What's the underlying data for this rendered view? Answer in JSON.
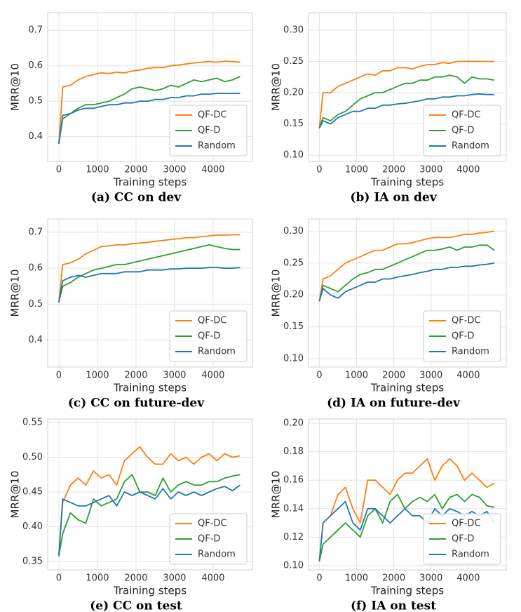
{
  "chart_data": [
    {
      "type": "line",
      "title": "(a) CC on dev",
      "x_label": "Training steps",
      "y_label": "MRR@10",
      "x": [
        0,
        100,
        300,
        500,
        700,
        900,
        1100,
        1300,
        1500,
        1700,
        1900,
        2100,
        2300,
        2500,
        2700,
        2900,
        3100,
        3300,
        3500,
        3700,
        3900,
        4100,
        4300,
        4500,
        4700
      ],
      "series": [
        {
          "name": "QF-DC",
          "color": "#ff7f0e",
          "values": [
            0.38,
            0.54,
            0.545,
            0.56,
            0.57,
            0.575,
            0.58,
            0.578,
            0.582,
            0.58,
            0.585,
            0.588,
            0.593,
            0.595,
            0.595,
            0.6,
            0.602,
            0.605,
            0.608,
            0.61,
            0.612,
            0.61,
            0.613,
            0.612,
            0.61
          ]
        },
        {
          "name": "QF-D",
          "color": "#2ca02c",
          "values": [
            0.38,
            0.45,
            0.465,
            0.48,
            0.49,
            0.49,
            0.495,
            0.5,
            0.51,
            0.52,
            0.535,
            0.54,
            0.535,
            0.53,
            0.535,
            0.545,
            0.54,
            0.55,
            0.56,
            0.555,
            0.56,
            0.565,
            0.555,
            0.56,
            0.57
          ]
        },
        {
          "name": "Random",
          "color": "#1f77b4",
          "values": [
            0.38,
            0.46,
            0.465,
            0.475,
            0.48,
            0.48,
            0.485,
            0.49,
            0.49,
            0.495,
            0.495,
            0.5,
            0.5,
            0.505,
            0.505,
            0.51,
            0.51,
            0.515,
            0.515,
            0.52,
            0.52,
            0.522,
            0.522,
            0.522,
            0.522
          ]
        }
      ],
      "xlim": [
        -290,
        5020
      ],
      "xticks": [
        0,
        1000,
        2000,
        3000,
        4000
      ],
      "ylim": [
        0.33,
        0.75
      ],
      "yticks": [
        0.4,
        0.5,
        0.6,
        0.7
      ],
      "grid": true,
      "legend": "lower right"
    },
    {
      "type": "line",
      "title": "(b) IA on dev",
      "x_label": "Training steps",
      "y_label": "MRR@10",
      "x": [
        0,
        100,
        300,
        500,
        700,
        900,
        1100,
        1300,
        1500,
        1700,
        1900,
        2100,
        2300,
        2500,
        2700,
        2900,
        3100,
        3300,
        3500,
        3700,
        3900,
        4100,
        4300,
        4500,
        4700
      ],
      "series": [
        {
          "name": "QF-DC",
          "color": "#ff7f0e",
          "values": [
            0.143,
            0.2,
            0.2,
            0.21,
            0.215,
            0.22,
            0.225,
            0.23,
            0.228,
            0.235,
            0.235,
            0.24,
            0.24,
            0.238,
            0.242,
            0.245,
            0.245,
            0.248,
            0.247,
            0.25,
            0.25,
            0.25,
            0.25,
            0.25,
            0.25
          ]
        },
        {
          "name": "QF-D",
          "color": "#2ca02c",
          "values": [
            0.143,
            0.16,
            0.155,
            0.165,
            0.17,
            0.18,
            0.19,
            0.195,
            0.2,
            0.2,
            0.205,
            0.21,
            0.215,
            0.215,
            0.22,
            0.22,
            0.225,
            0.225,
            0.228,
            0.225,
            0.215,
            0.225,
            0.222,
            0.222,
            0.22
          ]
        },
        {
          "name": "Random",
          "color": "#1f77b4",
          "values": [
            0.143,
            0.155,
            0.15,
            0.16,
            0.165,
            0.17,
            0.17,
            0.175,
            0.175,
            0.18,
            0.18,
            0.182,
            0.183,
            0.185,
            0.187,
            0.19,
            0.19,
            0.193,
            0.193,
            0.195,
            0.195,
            0.197,
            0.198,
            0.197,
            0.197
          ]
        }
      ],
      "xlim": [
        -290,
        5020
      ],
      "xticks": [
        0,
        1000,
        2000,
        3000,
        4000
      ],
      "ylim": [
        0.09,
        0.328
      ],
      "yticks": [
        {
          "value": 0.1,
          "label": "0.10"
        },
        0.15,
        {
          "value": 0.2,
          "label": "0.20"
        },
        0.25,
        {
          "value": 0.3,
          "label": "0.30"
        }
      ],
      "grid": true,
      "legend": "lower right"
    },
    {
      "type": "line",
      "title": "(c) CC on future-dev",
      "x_label": "Training steps",
      "y_label": "MRR@10",
      "x": [
        0,
        100,
        300,
        500,
        700,
        900,
        1100,
        1300,
        1500,
        1700,
        1900,
        2100,
        2300,
        2500,
        2700,
        2900,
        3100,
        3300,
        3500,
        3700,
        3900,
        4100,
        4300,
        4500,
        4700
      ],
      "series": [
        {
          "name": "QF-DC",
          "color": "#ff7f0e",
          "values": [
            0.505,
            0.61,
            0.615,
            0.625,
            0.64,
            0.65,
            0.66,
            0.662,
            0.665,
            0.665,
            0.668,
            0.67,
            0.672,
            0.675,
            0.677,
            0.68,
            0.682,
            0.685,
            0.685,
            0.688,
            0.69,
            0.692,
            0.692,
            0.693,
            0.693
          ]
        },
        {
          "name": "QF-D",
          "color": "#2ca02c",
          "values": [
            0.505,
            0.55,
            0.56,
            0.575,
            0.585,
            0.595,
            0.6,
            0.605,
            0.61,
            0.61,
            0.615,
            0.62,
            0.625,
            0.63,
            0.635,
            0.64,
            0.645,
            0.65,
            0.655,
            0.66,
            0.665,
            0.66,
            0.655,
            0.652,
            0.652
          ]
        },
        {
          "name": "Random",
          "color": "#1f77b4",
          "values": [
            0.505,
            0.565,
            0.575,
            0.58,
            0.575,
            0.58,
            0.585,
            0.585,
            0.585,
            0.59,
            0.59,
            0.59,
            0.595,
            0.595,
            0.595,
            0.598,
            0.598,
            0.6,
            0.6,
            0.6,
            0.602,
            0.602,
            0.6,
            0.6,
            0.602
          ]
        }
      ],
      "xlim": [
        -290,
        5020
      ],
      "xticks": [
        0,
        1000,
        2000,
        3000,
        4000
      ],
      "ylim": [
        0.325,
        0.737
      ],
      "yticks": [
        0.4,
        0.5,
        0.6,
        0.7
      ],
      "grid": true,
      "legend": "lower right"
    },
    {
      "type": "line",
      "title": "(d) IA on future-dev",
      "x_label": "Training steps",
      "y_label": "MRR@10",
      "x": [
        0,
        100,
        300,
        500,
        700,
        900,
        1100,
        1300,
        1500,
        1700,
        1900,
        2100,
        2300,
        2500,
        2700,
        2900,
        3100,
        3300,
        3500,
        3700,
        3900,
        4100,
        4300,
        4500,
        4700
      ],
      "series": [
        {
          "name": "QF-DC",
          "color": "#ff7f0e",
          "values": [
            0.19,
            0.225,
            0.23,
            0.24,
            0.25,
            0.255,
            0.26,
            0.265,
            0.27,
            0.27,
            0.275,
            0.28,
            0.28,
            0.282,
            0.285,
            0.288,
            0.29,
            0.29,
            0.29,
            0.292,
            0.295,
            0.295,
            0.297,
            0.298,
            0.3
          ]
        },
        {
          "name": "QF-D",
          "color": "#2ca02c",
          "values": [
            0.19,
            0.215,
            0.21,
            0.205,
            0.215,
            0.225,
            0.232,
            0.235,
            0.24,
            0.24,
            0.245,
            0.25,
            0.255,
            0.26,
            0.265,
            0.27,
            0.27,
            0.272,
            0.275,
            0.27,
            0.275,
            0.275,
            0.278,
            0.278,
            0.27
          ]
        },
        {
          "name": "Random",
          "color": "#1f77b4",
          "values": [
            0.19,
            0.21,
            0.2,
            0.195,
            0.205,
            0.21,
            0.215,
            0.22,
            0.22,
            0.225,
            0.225,
            0.228,
            0.23,
            0.232,
            0.235,
            0.237,
            0.24,
            0.24,
            0.243,
            0.243,
            0.245,
            0.245,
            0.247,
            0.248,
            0.25
          ]
        }
      ],
      "xlim": [
        -290,
        5020
      ],
      "xticks": [
        0,
        1000,
        2000,
        3000,
        4000
      ],
      "ylim": [
        0.087,
        0.319
      ],
      "yticks": [
        {
          "value": 0.1,
          "label": "0.10"
        },
        0.15,
        {
          "value": 0.2,
          "label": "0.20"
        },
        0.25,
        {
          "value": 0.3,
          "label": "0.30"
        }
      ],
      "grid": true,
      "legend": "lower right"
    },
    {
      "type": "line",
      "title": "(e) CC on test",
      "x_label": "Training steps",
      "y_label": "MRR@10",
      "x": [
        0,
        100,
        300,
        500,
        700,
        900,
        1100,
        1300,
        1500,
        1700,
        1900,
        2100,
        2300,
        2500,
        2700,
        2900,
        3100,
        3300,
        3500,
        3700,
        3900,
        4100,
        4300,
        4500,
        4700
      ],
      "series": [
        {
          "name": "QF-DC",
          "color": "#ff7f0e",
          "values": [
            0.358,
            0.435,
            0.46,
            0.47,
            0.46,
            0.48,
            0.47,
            0.475,
            0.46,
            0.495,
            0.505,
            0.515,
            0.5,
            0.49,
            0.49,
            0.505,
            0.495,
            0.5,
            0.49,
            0.5,
            0.505,
            0.495,
            0.505,
            0.5,
            0.502
          ]
        },
        {
          "name": "QF-D",
          "color": "#2ca02c",
          "values": [
            0.358,
            0.39,
            0.42,
            0.41,
            0.405,
            0.44,
            0.43,
            0.435,
            0.44,
            0.465,
            0.475,
            0.45,
            0.45,
            0.445,
            0.47,
            0.45,
            0.46,
            0.465,
            0.46,
            0.46,
            0.465,
            0.465,
            0.47,
            0.473,
            0.475
          ]
        },
        {
          "name": "Random",
          "color": "#1f77b4",
          "values": [
            0.358,
            0.44,
            0.435,
            0.43,
            0.43,
            0.435,
            0.44,
            0.445,
            0.43,
            0.45,
            0.445,
            0.45,
            0.445,
            0.44,
            0.455,
            0.44,
            0.45,
            0.445,
            0.45,
            0.445,
            0.45,
            0.455,
            0.458,
            0.452,
            0.46
          ]
        }
      ],
      "xlim": [
        -290,
        5020
      ],
      "xticks": [
        0,
        1000,
        2000,
        3000,
        4000
      ],
      "ylim": [
        0.338,
        0.555
      ],
      "yticks": [
        0.35,
        {
          "value": 0.4,
          "label": "0.40"
        },
        0.45,
        {
          "value": 0.5,
          "label": "0.50"
        },
        0.55
      ],
      "grid": true,
      "legend": "lower right"
    },
    {
      "type": "line",
      "title": "(f) IA on test",
      "x_label": "Training steps",
      "y_label": "MRR@10",
      "x": [
        0,
        100,
        300,
        500,
        700,
        900,
        1100,
        1300,
        1500,
        1700,
        1900,
        2100,
        2300,
        2500,
        2700,
        2900,
        3100,
        3300,
        3500,
        3700,
        3900,
        4100,
        4300,
        4500,
        4700
      ],
      "series": [
        {
          "name": "QF-DC",
          "color": "#ff7f0e",
          "values": [
            0.103,
            0.13,
            0.135,
            0.15,
            0.155,
            0.14,
            0.13,
            0.16,
            0.16,
            0.155,
            0.15,
            0.16,
            0.165,
            0.165,
            0.17,
            0.175,
            0.16,
            0.17,
            0.175,
            0.17,
            0.16,
            0.165,
            0.16,
            0.155,
            0.158
          ]
        },
        {
          "name": "QF-D",
          "color": "#2ca02c",
          "values": [
            0.103,
            0.115,
            0.12,
            0.125,
            0.13,
            0.125,
            0.12,
            0.135,
            0.14,
            0.13,
            0.145,
            0.15,
            0.14,
            0.145,
            0.148,
            0.145,
            0.15,
            0.14,
            0.148,
            0.15,
            0.145,
            0.15,
            0.148,
            0.142,
            0.141
          ]
        },
        {
          "name": "Random",
          "color": "#1f77b4",
          "values": [
            0.103,
            0.13,
            0.135,
            0.14,
            0.145,
            0.13,
            0.125,
            0.14,
            0.14,
            0.135,
            0.13,
            0.135,
            0.14,
            0.135,
            0.135,
            0.13,
            0.14,
            0.135,
            0.14,
            0.138,
            0.135,
            0.138,
            0.135,
            0.138,
            0.13
          ]
        }
      ],
      "xlim": [
        -290,
        5020
      ],
      "xticks": [
        0,
        1000,
        2000,
        3000,
        4000
      ],
      "ylim": [
        0.097,
        0.203
      ],
      "yticks": [
        {
          "value": 0.1,
          "label": "0.10"
        },
        0.12,
        0.14,
        0.16,
        0.18,
        {
          "value": 0.2,
          "label": "0.20"
        }
      ],
      "grid": true,
      "legend": "lower right"
    }
  ]
}
